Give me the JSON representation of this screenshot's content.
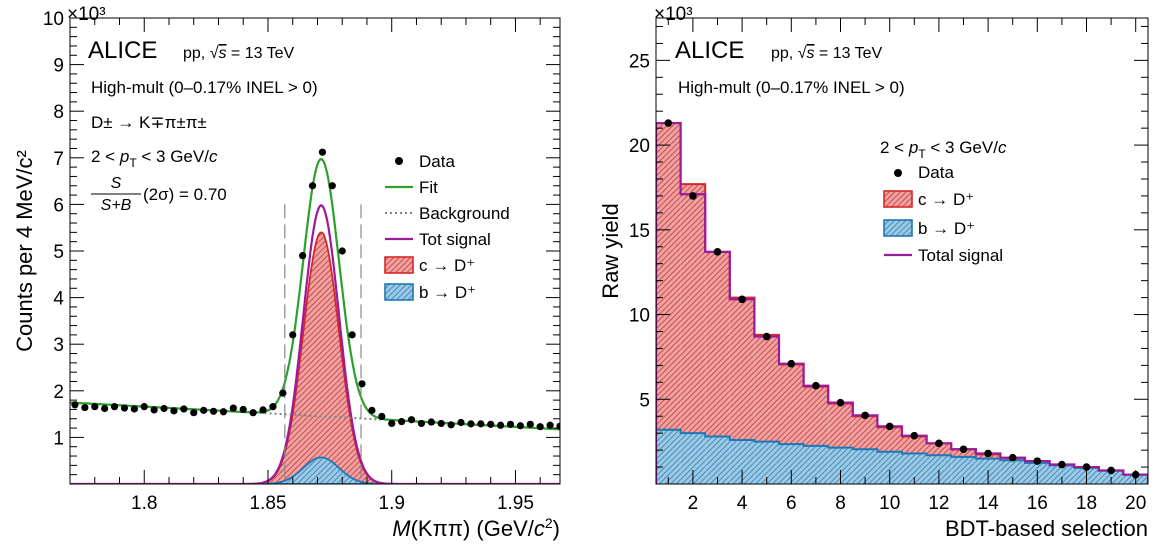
{
  "colors": {
    "data": "#000000",
    "fit": "#2ca02c",
    "background": "#808080",
    "total_signal": "#9b1b9b",
    "prompt": "#d62728",
    "prompt_fill": "#e58484",
    "nonprompt": "#1f77b4",
    "nonprompt_fill": "#7fb6d8"
  },
  "chart_data": [
    {
      "type": "scatter",
      "panel": "left",
      "xlabel": "M(Kππ) (GeV/c²)",
      "ylabel": "Counts per 4 MeV/c²",
      "y_multiplier": "×10³",
      "xlim": [
        1.77,
        1.968
      ],
      "ylim": [
        0,
        10
      ],
      "xticks": [
        1.8,
        1.85,
        1.9,
        1.95
      ],
      "xtick_labels": [
        "1.8",
        "1.85",
        "1.9",
        "1.95"
      ],
      "yticks": [
        1,
        2,
        3,
        4,
        5,
        6,
        7,
        8,
        9,
        10
      ],
      "ytick_labels": [
        "1",
        "2",
        "3",
        "4",
        "5",
        "6",
        "7",
        "8",
        "9",
        "10"
      ],
      "annotations": {
        "experiment": "ALICE",
        "system_prefix": "pp, ",
        "energy_suffix": " = 13 TeV",
        "multiplicity": "High-mult (0–0.17% INEL > 0)",
        "decay_channel": "D± → K∓π±π±",
        "pt_range_prefix": "2 < ",
        "pt_range_suffix": " < 3 GeV/",
        "significance_value": "(2σ) = 0.70"
      },
      "legend": [
        "Data",
        "Fit",
        "Background",
        "Tot signal",
        "c → D⁺",
        "b → D⁺"
      ],
      "signal_window": [
        1.8568,
        1.8876
      ],
      "data_points": {
        "x": [
          1.772,
          1.776,
          1.78,
          1.784,
          1.788,
          1.792,
          1.796,
          1.8,
          1.804,
          1.808,
          1.812,
          1.816,
          1.82,
          1.824,
          1.828,
          1.832,
          1.836,
          1.84,
          1.844,
          1.848,
          1.852,
          1.856,
          1.86,
          1.864,
          1.868,
          1.872,
          1.876,
          1.88,
          1.884,
          1.888,
          1.892,
          1.896,
          1.9,
          1.904,
          1.908,
          1.912,
          1.916,
          1.92,
          1.924,
          1.928,
          1.932,
          1.936,
          1.94,
          1.944,
          1.948,
          1.952,
          1.956,
          1.96,
          1.964,
          1.968
        ],
        "y": [
          1.7,
          1.64,
          1.66,
          1.62,
          1.66,
          1.63,
          1.61,
          1.66,
          1.59,
          1.62,
          1.57,
          1.61,
          1.53,
          1.58,
          1.56,
          1.55,
          1.63,
          1.6,
          1.53,
          1.59,
          1.66,
          1.95,
          3.2,
          4.9,
          6.4,
          7.12,
          6.4,
          5.0,
          3.2,
          2.15,
          1.58,
          1.45,
          1.3,
          1.34,
          1.38,
          1.3,
          1.33,
          1.3,
          1.27,
          1.32,
          1.29,
          1.29,
          1.28,
          1.26,
          1.28,
          1.25,
          1.28,
          1.23,
          1.26,
          1.24
        ]
      },
      "model": {
        "background": {
          "a": 1.545,
          "slope": -2.9,
          "x0": 1.84
        },
        "peak_mean": 1.8715,
        "peak_sigma": 0.0072,
        "amp_total_signal": 5.98,
        "amp_fit_peak": 5.52,
        "amp_prompt": 5.4,
        "amp_nonprompt": 0.57
      }
    },
    {
      "type": "bar",
      "panel": "right",
      "xlabel": "BDT-based selection",
      "ylabel": "Raw yield",
      "y_multiplier": "×10³",
      "xlim": [
        0.5,
        20.5
      ],
      "ylim": [
        0,
        27.5
      ],
      "xticks": [
        2,
        4,
        6,
        8,
        10,
        12,
        14,
        16,
        18,
        20
      ],
      "xtick_labels": [
        "2",
        "4",
        "6",
        "8",
        "10",
        "12",
        "14",
        "16",
        "18",
        "20"
      ],
      "yticks": [
        5,
        10,
        15,
        20,
        25
      ],
      "ytick_labels": [
        "5",
        "10",
        "15",
        "20",
        "25"
      ],
      "annotations": {
        "experiment": "ALICE",
        "system_prefix": "pp, ",
        "energy_suffix": " = 13 TeV",
        "multiplicity": "High-mult (0–0.17% INEL > 0)",
        "pt_range_prefix": "2 < ",
        "pt_range_suffix": " < 3 GeV/"
      },
      "legend": [
        "Data",
        "c → D⁺",
        "b → D⁺",
        "Total signal"
      ],
      "categories": [
        1,
        2,
        3,
        4,
        5,
        6,
        7,
        8,
        9,
        10,
        11,
        12,
        13,
        14,
        15,
        16,
        17,
        18,
        19,
        20
      ],
      "series": [
        {
          "name": "Data",
          "values": [
            21.3,
            17.0,
            13.7,
            10.9,
            8.7,
            7.1,
            5.8,
            4.8,
            4.05,
            3.4,
            2.85,
            2.4,
            2.05,
            1.8,
            1.55,
            1.35,
            1.15,
            1.0,
            0.8,
            0.55
          ]
        },
        {
          "name": "Total signal",
          "values": [
            21.3,
            17.1,
            13.7,
            10.9,
            8.7,
            7.1,
            5.8,
            4.8,
            4.05,
            3.4,
            2.85,
            2.4,
            2.05,
            1.8,
            1.55,
            1.35,
            1.15,
            1.0,
            0.8,
            0.55
          ]
        },
        {
          "name": "c → D⁺",
          "values": [
            18.1,
            14.7,
            10.9,
            8.4,
            6.3,
            4.7,
            3.5,
            2.6,
            1.95,
            1.45,
            1.0,
            0.7,
            0.45,
            0.25,
            0.15,
            0.08,
            0.05,
            0.03,
            0.02,
            0.01
          ]
        },
        {
          "name": "b → D⁺",
          "values": [
            3.2,
            3.0,
            2.8,
            2.6,
            2.5,
            2.35,
            2.25,
            2.15,
            2.05,
            1.9,
            1.8,
            1.7,
            1.6,
            1.5,
            1.4,
            1.25,
            1.1,
            0.95,
            0.78,
            0.55
          ]
        }
      ]
    }
  ]
}
